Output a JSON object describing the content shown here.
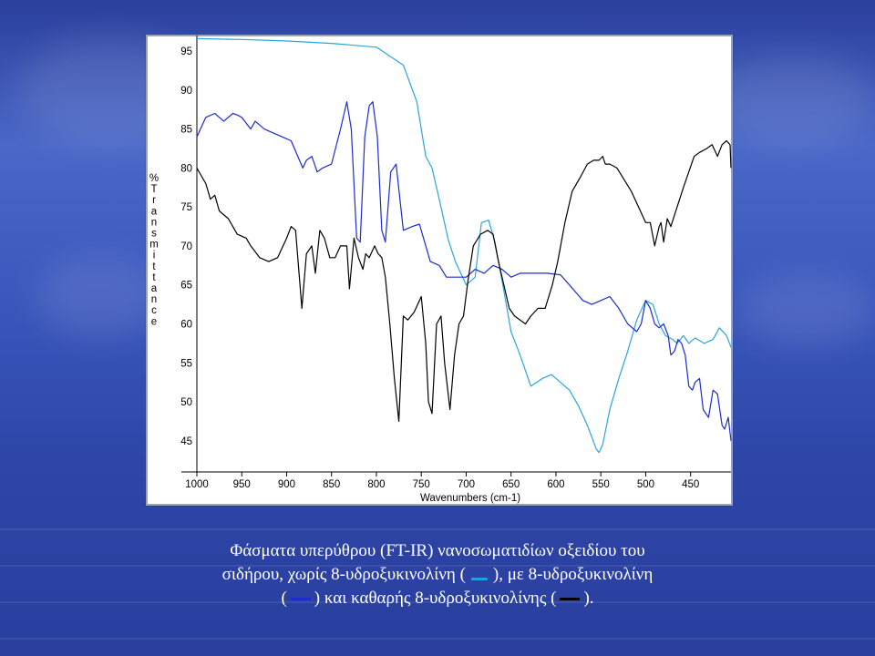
{
  "chart_data": {
    "type": "line",
    "xlabel": "Wavenumbers (cm-1)",
    "ylabel": "% Transmittance",
    "xlim": [
      1000,
      405
    ],
    "ylim": [
      41,
      97
    ],
    "xticks": [
      1000,
      950,
      900,
      850,
      800,
      750,
      700,
      650,
      600,
      550,
      500,
      450
    ],
    "yticks": [
      95,
      90,
      85,
      80,
      75,
      70,
      65,
      60,
      55,
      50,
      45
    ],
    "grid": false,
    "series": [
      {
        "color": "#29a6dc",
        "x": [
          1000,
          950,
          900,
          850,
          800,
          770,
          755,
          745,
          738,
          730,
          720,
          712,
          700,
          690,
          683,
          675,
          668,
          660,
          650,
          640,
          628,
          615,
          605,
          595,
          585,
          575,
          565,
          555,
          552,
          548,
          540,
          530,
          520,
          510,
          500,
          492,
          485,
          478,
          470,
          465,
          458,
          452,
          445,
          435,
          425,
          418,
          410,
          405
        ],
        "y": [
          96.6,
          96.5,
          96.3,
          96.0,
          95.5,
          93.2,
          88.5,
          81.5,
          80.0,
          76.0,
          70.8,
          68.0,
          65.0,
          66.0,
          73.0,
          73.3,
          70.5,
          65.5,
          59.0,
          56.0,
          52.0,
          53.0,
          53.5,
          52.5,
          51.5,
          49.5,
          47.0,
          43.9,
          43.5,
          44.5,
          49.0,
          53.0,
          56.5,
          60.5,
          63.0,
          62.5,
          60.0,
          58.5,
          58.0,
          57.5,
          58.5,
          57.5,
          58.2,
          57.5,
          58.0,
          59.5,
          58.5,
          57.0
        ]
      },
      {
        "color": "#1d2bd0",
        "x": [
          1000,
          990,
          980,
          970,
          960,
          955,
          950,
          940,
          935,
          925,
          915,
          905,
          895,
          882,
          878,
          872,
          866,
          860,
          850,
          840,
          833,
          828,
          822,
          818,
          813,
          808,
          804,
          799,
          794,
          790,
          784,
          778,
          770,
          760,
          752,
          740,
          730,
          722,
          712,
          700,
          690,
          680,
          670,
          660,
          650,
          640,
          625,
          610,
          595,
          585,
          570,
          560,
          550,
          540,
          530,
          520,
          510,
          505,
          500,
          495,
          490,
          485,
          480,
          475,
          472,
          468,
          464,
          460,
          456,
          452,
          448,
          445,
          440,
          436,
          430,
          425,
          420,
          415,
          412,
          408,
          405
        ],
        "y": [
          84.0,
          86.5,
          87.0,
          86.0,
          87.0,
          86.8,
          86.5,
          85.0,
          86.0,
          85.0,
          84.5,
          84.0,
          83.5,
          80.0,
          81.0,
          81.5,
          79.5,
          80.0,
          80.5,
          85.0,
          88.5,
          85.0,
          71.0,
          70.5,
          84.0,
          88.0,
          88.5,
          84.0,
          72.0,
          70.5,
          79.5,
          80.5,
          72.0,
          72.5,
          72.8,
          68.0,
          67.5,
          66.0,
          66.0,
          66.0,
          67.0,
          66.5,
          67.5,
          67.0,
          66.0,
          66.5,
          66.5,
          66.5,
          66.3,
          65.0,
          63.0,
          62.5,
          63.0,
          63.5,
          62.0,
          60.0,
          59.0,
          60.0,
          63.0,
          62.0,
          60.0,
          59.5,
          60.0,
          58.5,
          56.0,
          56.5,
          58.0,
          57.5,
          56.0,
          52.0,
          51.5,
          52.5,
          53.0,
          49.0,
          48.0,
          51.5,
          51.0,
          47.0,
          46.5,
          48.0,
          45.0
        ]
      },
      {
        "color": "#000000",
        "x": [
          1000,
          995,
          990,
          985,
          980,
          975,
          965,
          955,
          945,
          940,
          930,
          920,
          910,
          900,
          895,
          890,
          883,
          878,
          872,
          868,
          863,
          858,
          852,
          846,
          840,
          833,
          830,
          825,
          820,
          815,
          812,
          808,
          802,
          798,
          794,
          790,
          785,
          780,
          775,
          770,
          765,
          758,
          750,
          745,
          742,
          738,
          733,
          728,
          724,
          718,
          713,
          708,
          703,
          698,
          692,
          684,
          676,
          670,
          664,
          658,
          652,
          646,
          640,
          634,
          628,
          620,
          612,
          604,
          598,
          590,
          582,
          572,
          565,
          558,
          552,
          548,
          545,
          540,
          532,
          524,
          516,
          508,
          500,
          495,
          490,
          485,
          483,
          480,
          476,
          472,
          465,
          458,
          452,
          446,
          440,
          432,
          426,
          420,
          415,
          410,
          406,
          405
        ],
        "y": [
          80.0,
          79.0,
          78.0,
          76.0,
          76.5,
          74.5,
          73.5,
          71.5,
          71.0,
          70.0,
          68.5,
          68.0,
          68.5,
          71.0,
          72.5,
          72.0,
          62.0,
          69.0,
          70.0,
          66.5,
          72.0,
          71.0,
          68.5,
          68.5,
          70.0,
          70.0,
          64.5,
          71.0,
          68.5,
          67.0,
          69.0,
          68.5,
          70.0,
          69.0,
          68.5,
          66.0,
          60.0,
          53.0,
          47.5,
          61.0,
          60.5,
          61.5,
          63.5,
          57.5,
          50.0,
          48.5,
          60.0,
          61.0,
          55.0,
          49.0,
          56.0,
          60.0,
          61.0,
          65.5,
          70.0,
          71.5,
          72.0,
          71.5,
          68.0,
          65.0,
          62.0,
          61.0,
          60.5,
          60.0,
          61.0,
          62.0,
          62.0,
          65.0,
          68.0,
          73.0,
          77.0,
          79.0,
          80.5,
          81.0,
          81.0,
          81.5,
          80.5,
          80.5,
          80.0,
          78.5,
          77.0,
          75.0,
          73.0,
          73.0,
          70.0,
          72.5,
          73.0,
          70.5,
          73.5,
          72.5,
          75.0,
          77.5,
          79.5,
          81.5,
          82.0,
          82.5,
          83.0,
          81.5,
          83.0,
          83.5,
          83.0,
          80.0
        ]
      }
    ]
  },
  "caption": {
    "line1": "Φάσματα υπερύθρου (FT-IR) νανοσωματιδίων οξειδίου του",
    "line2_before": "σιδήρου, χωρίς 8-υδροξυκινολίνη (",
    "line2_after": "), με 8-υδροξυκινολίνη",
    "line3_open": "(",
    "line3_after": ") και καθαρής 8-υδροξυκινολίνης (",
    "line3_close": ")."
  }
}
